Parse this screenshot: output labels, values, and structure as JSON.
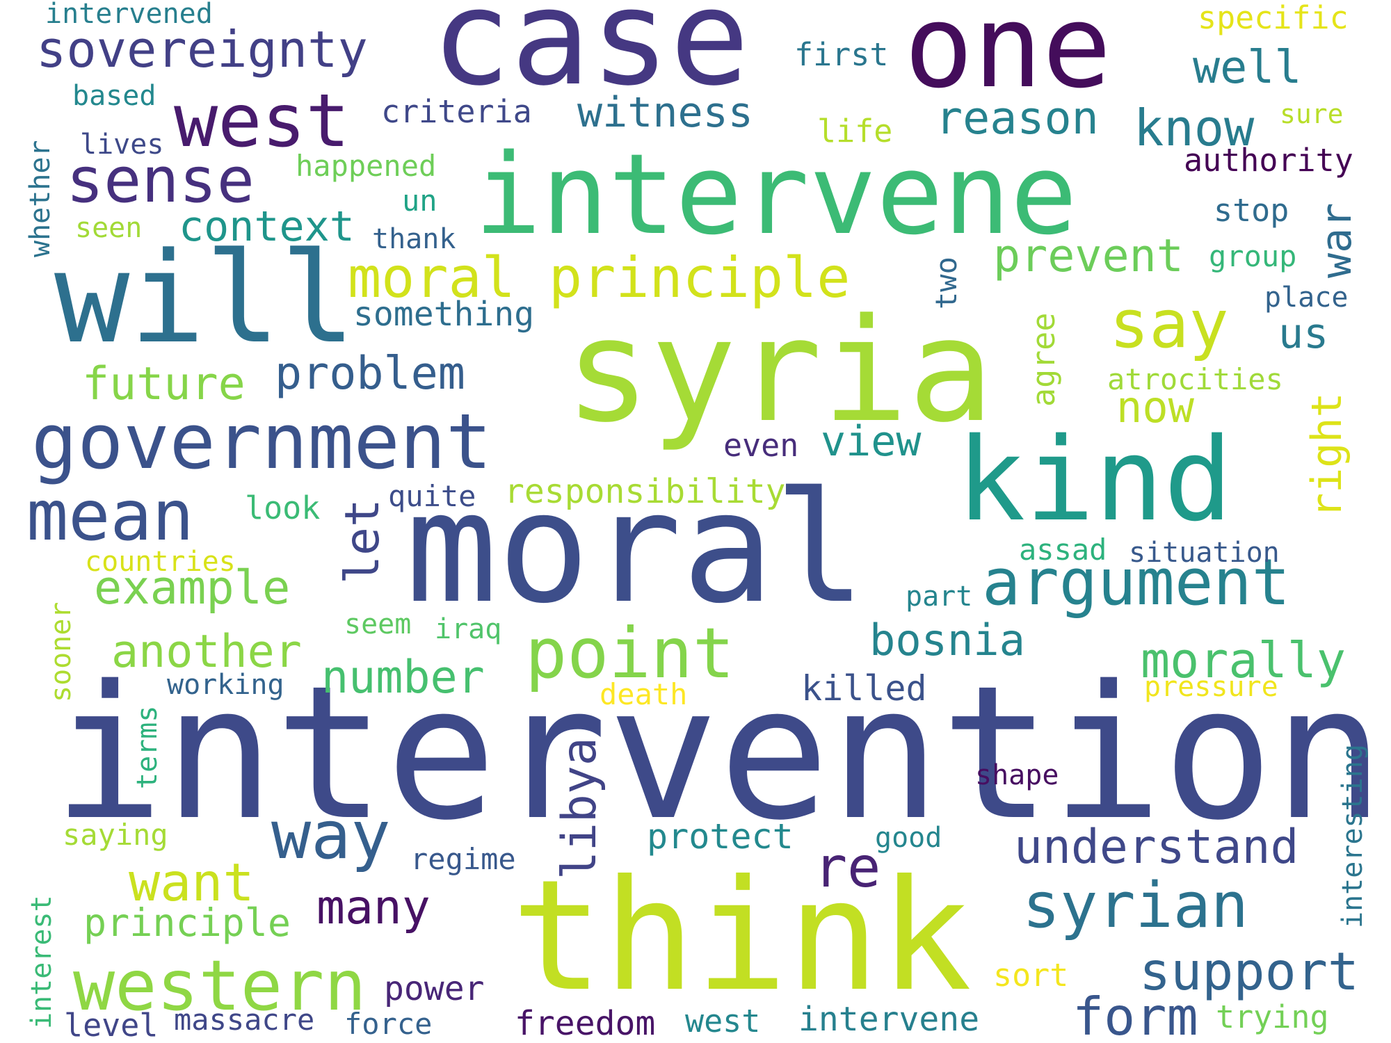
{
  "words": [
    {
      "text": "intervention",
      "color": "#3e4a89"
    },
    {
      "text": "moral",
      "color": "#3d4e8a"
    },
    {
      "text": "think",
      "color": "#c2df23"
    },
    {
      "text": "syria",
      "color": "#a5db36"
    },
    {
      "text": "intervene",
      "color": "#3cbb75"
    },
    {
      "text": "case",
      "color": "#453882"
    },
    {
      "text": "one",
      "color": "#440d5b"
    },
    {
      "text": "will",
      "color": "#2d708e"
    },
    {
      "text": "kind",
      "color": "#1f9a8a"
    },
    {
      "text": "government",
      "color": "#3b528b"
    },
    {
      "text": "west",
      "color": "#481b6d"
    },
    {
      "text": "sense",
      "color": "#46307e"
    },
    {
      "text": "argument",
      "color": "#26828e"
    },
    {
      "text": "mean",
      "color": "#3b528b"
    },
    {
      "text": "point",
      "color": "#84d44b"
    },
    {
      "text": "western",
      "color": "#8fd744"
    },
    {
      "text": "syrian",
      "color": "#2c728e"
    },
    {
      "text": "way",
      "color": "#355f8d"
    },
    {
      "text": "sovereignty",
      "color": "#424086"
    },
    {
      "text": "moral principle",
      "color": "#d2e21b"
    },
    {
      "text": "say",
      "color": "#c8e020"
    },
    {
      "text": "support",
      "color": "#33638d"
    },
    {
      "text": "form",
      "color": "#39568c"
    },
    {
      "text": "understand",
      "color": "#3f4889"
    },
    {
      "text": "re",
      "color": "#482374"
    },
    {
      "text": "want",
      "color": "#cae11f"
    },
    {
      "text": "morally",
      "color": "#4ac16d"
    },
    {
      "text": "well",
      "color": "#287d8e"
    },
    {
      "text": "know",
      "color": "#287c8e"
    },
    {
      "text": "reason",
      "color": "#26828e"
    },
    {
      "text": "witness",
      "color": "#2d708e"
    },
    {
      "text": "context",
      "color": "#1f958b"
    },
    {
      "text": "prevent",
      "color": "#6ccd5a"
    },
    {
      "text": "problem",
      "color": "#355e8d"
    },
    {
      "text": "future",
      "color": "#86d549"
    },
    {
      "text": "example",
      "color": "#7ad151"
    },
    {
      "text": "another",
      "color": "#8bd646"
    },
    {
      "text": "bosnia",
      "color": "#25848e"
    },
    {
      "text": "number",
      "color": "#46c06f"
    },
    {
      "text": "principle",
      "color": "#75d054"
    },
    {
      "text": "many",
      "color": "#471164"
    },
    {
      "text": "libya",
      "color": "#414487"
    },
    {
      "text": "let",
      "color": "#3f4788"
    },
    {
      "text": "war",
      "color": "#2f6c8e"
    },
    {
      "text": "right",
      "color": "#dde318"
    },
    {
      "text": "now",
      "color": "#bddf26"
    },
    {
      "text": "us",
      "color": "#297a8e"
    },
    {
      "text": "view",
      "color": "#20928c"
    },
    {
      "text": "responsibility",
      "color": "#a8db34"
    },
    {
      "text": "something",
      "color": "#2e6e8e"
    },
    {
      "text": "criteria",
      "color": "#3f4889"
    },
    {
      "text": "authority",
      "color": "#440154"
    },
    {
      "text": "stop",
      "color": "#2f6b8e"
    },
    {
      "text": "killed",
      "color": "#3b528b"
    },
    {
      "text": "protect",
      "color": "#23898e"
    },
    {
      "text": "power",
      "color": "#482677"
    },
    {
      "text": "freedom",
      "color": "#481467"
    },
    {
      "text": "intervene",
      "color": "#27808e"
    },
    {
      "text": "trying",
      "color": "#73d056"
    },
    {
      "text": "level",
      "color": "#404688"
    },
    {
      "text": "massacre",
      "color": "#3f4788"
    },
    {
      "text": "force",
      "color": "#34618d"
    },
    {
      "text": "west",
      "color": "#24878e"
    },
    {
      "text": "first",
      "color": "#2a768e"
    },
    {
      "text": "specific",
      "color": "#e5e419"
    },
    {
      "text": "life",
      "color": "#b5de2b"
    },
    {
      "text": "happened",
      "color": "#6ece58"
    },
    {
      "text": "un",
      "color": "#20a386"
    },
    {
      "text": "thank",
      "color": "#34618d"
    },
    {
      "text": "lives",
      "color": "#3e4989"
    },
    {
      "text": "based",
      "color": "#23888e"
    },
    {
      "text": "intervened",
      "color": "#277f8e"
    },
    {
      "text": "whether",
      "color": "#2c738e"
    },
    {
      "text": "seen",
      "color": "#a2da37"
    },
    {
      "text": "group",
      "color": "#35b779"
    },
    {
      "text": "place",
      "color": "#33638d"
    },
    {
      "text": "sure",
      "color": "#b8de29"
    },
    {
      "text": "two",
      "color": "#31688e"
    },
    {
      "text": "agree",
      "color": "#a2da37"
    },
    {
      "text": "atrocities",
      "color": "#a0da39"
    },
    {
      "text": "even",
      "color": "#472d7b"
    },
    {
      "text": "quite",
      "color": "#3d4d8a"
    },
    {
      "text": "look",
      "color": "#3bbb75"
    },
    {
      "text": "countries",
      "color": "#d8e219"
    },
    {
      "text": "assad",
      "color": "#2db27d"
    },
    {
      "text": "situation",
      "color": "#38598c"
    },
    {
      "text": "part",
      "color": "#25858e"
    },
    {
      "text": "seem",
      "color": "#5ec962"
    },
    {
      "text": "iraq",
      "color": "#50c46a"
    },
    {
      "text": "sooner",
      "color": "#addc30"
    },
    {
      "text": "working",
      "color": "#33638d"
    },
    {
      "text": "terms",
      "color": "#2db27d"
    },
    {
      "text": "death",
      "color": "#fde725"
    },
    {
      "text": "pressure",
      "color": "#f1e51d"
    },
    {
      "text": "shape",
      "color": "#470e61"
    },
    {
      "text": "interesting",
      "color": "#2b758e"
    },
    {
      "text": "good",
      "color": "#24868e"
    },
    {
      "text": "saying",
      "color": "#a5db36"
    },
    {
      "text": "regime",
      "color": "#38588c"
    },
    {
      "text": "interest",
      "color": "#3aba76"
    },
    {
      "text": "sort",
      "color": "#f4e61e"
    }
  ]
}
